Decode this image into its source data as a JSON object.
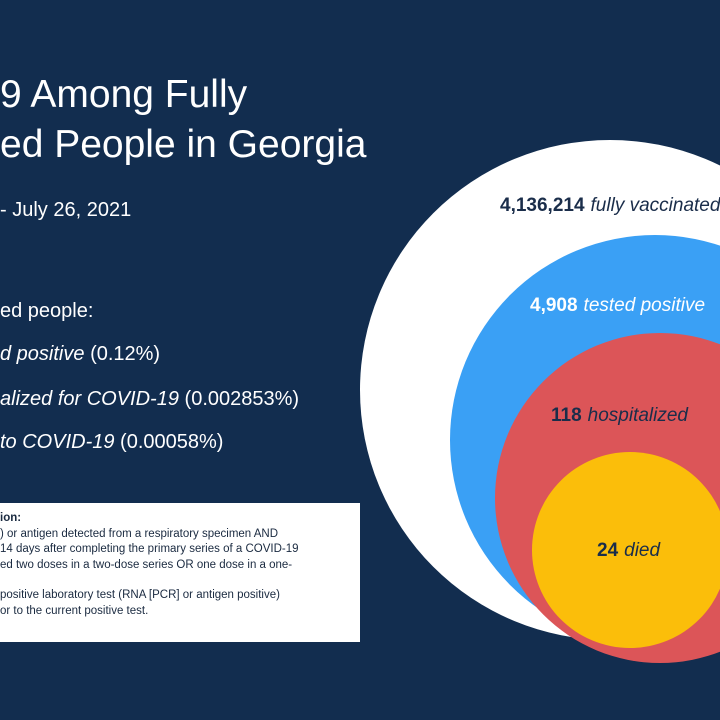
{
  "title": {
    "line1": "9 Among Fully",
    "line2": "ed People in Georgia"
  },
  "date_range": "- July 26, 2021",
  "people_heading": "ed people:",
  "stats": [
    {
      "label": "d positive",
      "pct": "(0.12%)"
    },
    {
      "label": "alized for COVID-19",
      "pct": "(0.002853%)"
    },
    {
      "label": "to COVID-19",
      "pct": "(0.00058%)"
    }
  ],
  "definition": {
    "title": "ion:",
    "lines": [
      ") or antigen detected from a respiratory specimen AND",
      "14 days after completing the primary series of a COVID-19",
      "ed two doses in a two-dose series OR one dose in a one-",
      "",
      "positive laboratory test (RNA [PCR] or antigen positive)",
      "or to the current positive test."
    ]
  },
  "circles": [
    {
      "number": "4,136,214",
      "label": "fully vaccinated",
      "fill": "#ffffff",
      "text_color": "#1a2d4a"
    },
    {
      "number": "4,908",
      "label": "tested positive",
      "fill": "#3aa0f5",
      "text_color": "#ffffff"
    },
    {
      "number": "118",
      "label": "hospitalized",
      "fill": "#dc5558",
      "text_color": "#1a2d4a"
    },
    {
      "number": "24",
      "label": "died",
      "fill": "#fbbe0a",
      "text_color": "#1a2d4a"
    }
  ],
  "colors": {
    "background": "#122d4f"
  }
}
